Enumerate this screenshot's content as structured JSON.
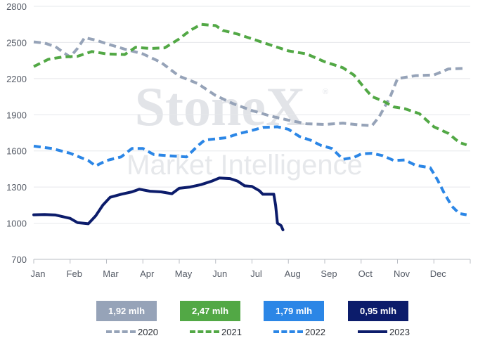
{
  "chart_data": {
    "type": "line",
    "title": "",
    "xlabel": "",
    "ylabel": "",
    "ylim": [
      700,
      2800
    ],
    "yticks": [
      700,
      1000,
      1300,
      1600,
      1900,
      2200,
      2500,
      2800
    ],
    "months": [
      "Jan",
      "Feb",
      "Mar",
      "Apr",
      "May",
      "Jun",
      "Jul",
      "Aug",
      "Sep",
      "Oct",
      "Nov",
      "Dec"
    ],
    "grid": "horizontal",
    "watermark": {
      "brand": "StoneX",
      "tagline": "Market Intelligence",
      "mark": "®"
    },
    "series": [
      {
        "name": "2020",
        "color": "#96a3b8",
        "dash": "dashed",
        "badge": "1,92 mlh",
        "points": [
          [
            0,
            2505
          ],
          [
            0.3,
            2495
          ],
          [
            0.6,
            2465
          ],
          [
            0.8,
            2420
          ],
          [
            1.0,
            2380
          ],
          [
            1.2,
            2450
          ],
          [
            1.4,
            2540
          ],
          [
            1.7,
            2520
          ],
          [
            2.0,
            2490
          ],
          [
            2.5,
            2445
          ],
          [
            3.0,
            2405
          ],
          [
            3.5,
            2335
          ],
          [
            4.0,
            2220
          ],
          [
            4.5,
            2160
          ],
          [
            5.0,
            2060
          ],
          [
            5.5,
            1990
          ],
          [
            6.0,
            1935
          ],
          [
            6.5,
            1890
          ],
          [
            7.0,
            1855
          ],
          [
            7.5,
            1825
          ],
          [
            8.0,
            1820
          ],
          [
            8.5,
            1830
          ],
          [
            9.0,
            1815
          ],
          [
            9.3,
            1810
          ],
          [
            9.5,
            1885
          ],
          [
            9.8,
            2050
          ],
          [
            10.0,
            2200
          ],
          [
            10.5,
            2225
          ],
          [
            11.0,
            2230
          ],
          [
            11.4,
            2280
          ],
          [
            11.8,
            2285
          ]
        ]
      },
      {
        "name": "2021",
        "color": "#52a845",
        "dash": "dashed",
        "badge": "2,47 mlh",
        "points": [
          [
            0,
            2300
          ],
          [
            0.4,
            2360
          ],
          [
            0.8,
            2380
          ],
          [
            1.2,
            2385
          ],
          [
            1.6,
            2425
          ],
          [
            2.0,
            2405
          ],
          [
            2.5,
            2400
          ],
          [
            2.8,
            2460
          ],
          [
            3.2,
            2450
          ],
          [
            3.6,
            2455
          ],
          [
            4.0,
            2530
          ],
          [
            4.3,
            2600
          ],
          [
            4.6,
            2650
          ],
          [
            5.0,
            2640
          ],
          [
            5.2,
            2600
          ],
          [
            5.6,
            2570
          ],
          [
            6.0,
            2530
          ],
          [
            6.5,
            2480
          ],
          [
            7.0,
            2430
          ],
          [
            7.5,
            2405
          ],
          [
            8.0,
            2340
          ],
          [
            8.5,
            2290
          ],
          [
            8.8,
            2230
          ],
          [
            9.1,
            2120
          ],
          [
            9.3,
            2050
          ],
          [
            9.6,
            2015
          ],
          [
            9.9,
            1965
          ],
          [
            10.2,
            1950
          ],
          [
            10.6,
            1910
          ],
          [
            11.0,
            1800
          ],
          [
            11.4,
            1745
          ],
          [
            11.7,
            1670
          ],
          [
            11.9,
            1650
          ]
        ]
      },
      {
        "name": "2022",
        "color": "#2b86e6",
        "dash": "dashed",
        "badge": "1,79 mlh",
        "points": [
          [
            0,
            1640
          ],
          [
            0.5,
            1620
          ],
          [
            1.0,
            1580
          ],
          [
            1.5,
            1520
          ],
          [
            1.7,
            1475
          ],
          [
            2.0,
            1520
          ],
          [
            2.4,
            1550
          ],
          [
            2.7,
            1620
          ],
          [
            3.0,
            1620
          ],
          [
            3.3,
            1570
          ],
          [
            3.7,
            1560
          ],
          [
            4.2,
            1550
          ],
          [
            4.5,
            1640
          ],
          [
            4.7,
            1690
          ],
          [
            5.0,
            1700
          ],
          [
            5.3,
            1710
          ],
          [
            5.6,
            1740
          ],
          [
            6.0,
            1770
          ],
          [
            6.3,
            1795
          ],
          [
            6.7,
            1800
          ],
          [
            7.0,
            1780
          ],
          [
            7.3,
            1720
          ],
          [
            7.6,
            1690
          ],
          [
            7.9,
            1645
          ],
          [
            8.2,
            1620
          ],
          [
            8.5,
            1530
          ],
          [
            8.8,
            1545
          ],
          [
            9.0,
            1575
          ],
          [
            9.3,
            1580
          ],
          [
            9.6,
            1560
          ],
          [
            9.9,
            1520
          ],
          [
            10.2,
            1525
          ],
          [
            10.5,
            1480
          ],
          [
            10.9,
            1460
          ],
          [
            11.1,
            1360
          ],
          [
            11.3,
            1240
          ],
          [
            11.5,
            1140
          ],
          [
            11.7,
            1080
          ],
          [
            11.9,
            1070
          ]
        ]
      },
      {
        "name": "2023",
        "color": "#0c1c6b",
        "dash": "solid",
        "badge": "0,95 mlh",
        "points": [
          [
            0,
            1070
          ],
          [
            0.3,
            1072
          ],
          [
            0.6,
            1068
          ],
          [
            1.0,
            1040
          ],
          [
            1.2,
            1005
          ],
          [
            1.5,
            995
          ],
          [
            1.7,
            1060
          ],
          [
            1.9,
            1150
          ],
          [
            2.1,
            1215
          ],
          [
            2.4,
            1240
          ],
          [
            2.7,
            1260
          ],
          [
            2.9,
            1282
          ],
          [
            3.2,
            1265
          ],
          [
            3.5,
            1260
          ],
          [
            3.8,
            1245
          ],
          [
            4.0,
            1290
          ],
          [
            4.3,
            1300
          ],
          [
            4.6,
            1320
          ],
          [
            4.9,
            1350
          ],
          [
            5.1,
            1375
          ],
          [
            5.4,
            1370
          ],
          [
            5.6,
            1350
          ],
          [
            5.8,
            1310
          ],
          [
            6.0,
            1305
          ],
          [
            6.2,
            1270
          ],
          [
            6.3,
            1240
          ],
          [
            6.5,
            1240
          ],
          [
            6.6,
            1240
          ],
          [
            6.65,
            1150
          ],
          [
            6.7,
            1000
          ],
          [
            6.8,
            980
          ],
          [
            6.85,
            945
          ]
        ]
      }
    ]
  }
}
